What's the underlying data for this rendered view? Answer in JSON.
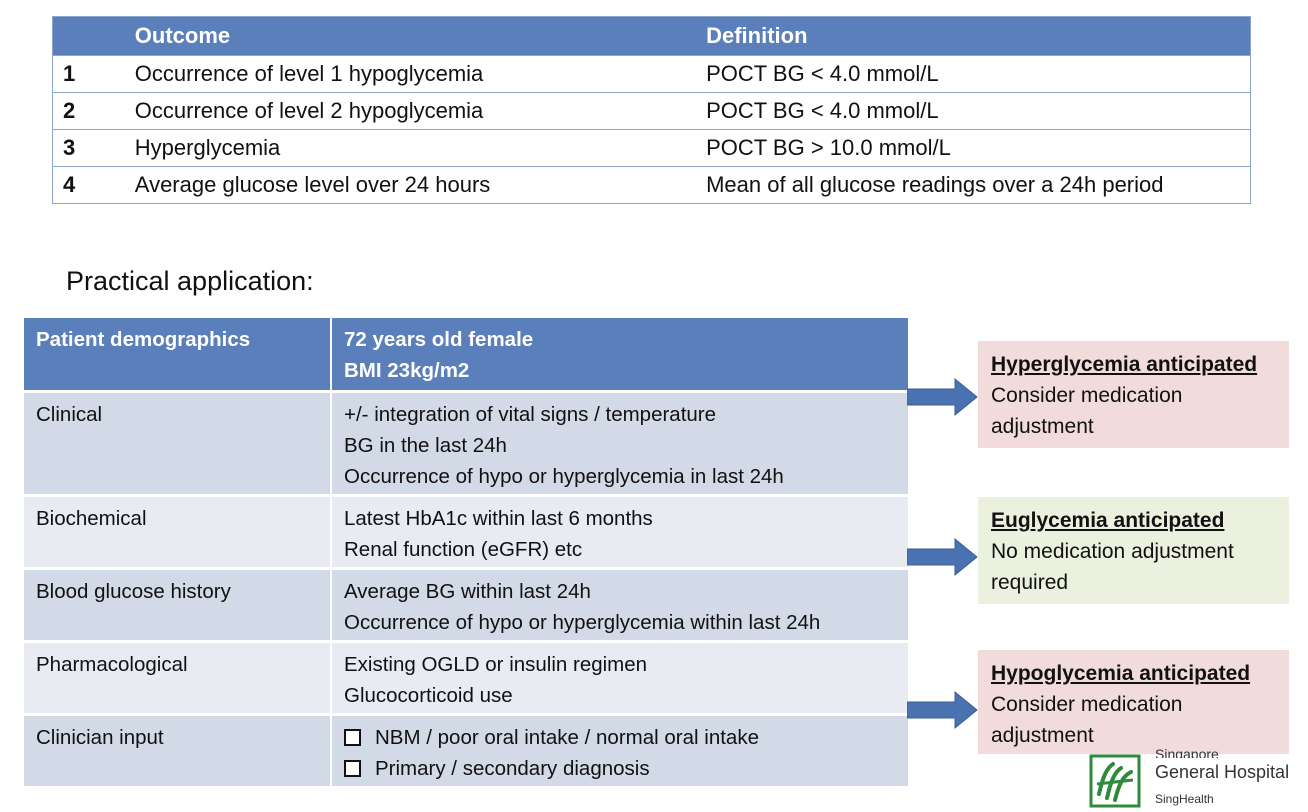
{
  "outcome_table": {
    "headers": {
      "num": "",
      "outcome": "Outcome",
      "definition": "Definition"
    },
    "rows": [
      {
        "num": "1",
        "outcome": "Occurrence of level 1 hypoglycemia",
        "definition": "POCT BG < 4.0 mmol/L"
      },
      {
        "num": "2",
        "outcome": "Occurrence of level 2 hypoglycemia",
        "definition": "POCT BG < 4.0 mmol/L"
      },
      {
        "num": "3",
        "outcome": "Hyperglycemia",
        "definition": "POCT BG > 10.0 mmol/L"
      },
      {
        "num": "4",
        "outcome": "Average glucose level over 24 hours",
        "definition": "Mean of all glucose readings over a 24h period"
      }
    ]
  },
  "section_title": "Practical application:",
  "application_table": {
    "header": {
      "label": "Patient demographics",
      "lines": [
        "72 years old female",
        "BMI 23kg/m2"
      ]
    },
    "rows": [
      {
        "label": "Clinical",
        "lines": [
          "+/- integration of vital signs / temperature",
          "BG in the last 24h",
          "Occurrence of hypo or hyperglycemia in last 24h"
        ]
      },
      {
        "label": "Biochemical",
        "lines": [
          "Latest HbA1c within last 6 months",
          "Renal function (eGFR) etc"
        ]
      },
      {
        "label": "Blood glucose history",
        "lines": [
          "Average BG within last 24h",
          "Occurrence of hypo or hyperglycemia within last 24h"
        ]
      },
      {
        "label": "Pharmacological",
        "lines": [
          "Existing OGLD or insulin regimen",
          "Glucocorticoid use"
        ]
      },
      {
        "label": "Clinician input",
        "lines": [
          "NBM / poor oral intake / normal oral intake",
          "Primary / secondary diagnosis"
        ]
      }
    ]
  },
  "outcome_boxes": {
    "hyper": {
      "title": "Hyperglycemia anticipated",
      "text": "Consider medication adjustment",
      "color": "#f2dcdb"
    },
    "eu": {
      "title": "Euglycemia anticipated",
      "text": "No medication adjustment required",
      "color": "#ebf1de"
    },
    "hypo": {
      "title": "Hypoglycemia anticipated",
      "text": "Consider medication adjustment",
      "color": "#f2dcdb"
    }
  },
  "logo": {
    "line1": "Singapore",
    "line2": "General Hospital",
    "line3": "SingHealth",
    "icon": "sgh-logo-icon"
  },
  "colors": {
    "header_blue": "#5b7fba",
    "row_dark": "#d2d9e7",
    "row_light": "#e8ebf2",
    "arrow": "#4a72b0"
  }
}
